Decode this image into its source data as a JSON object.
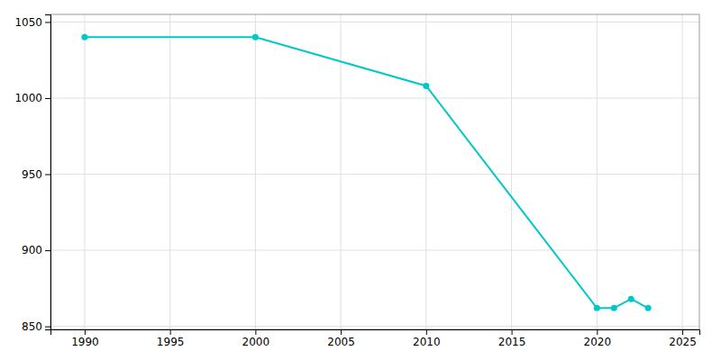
{
  "chart_data": {
    "type": "line",
    "x": [
      1990,
      2000,
      2010,
      2020,
      2021,
      2022,
      2023
    ],
    "values": [
      1040,
      1040,
      1008,
      862,
      862,
      868,
      862
    ],
    "color": "#00C8C8",
    "marker": "circle",
    "xlim": [
      1988,
      2026
    ],
    "ylim": [
      848,
      1055
    ],
    "xticks": [
      1990,
      1995,
      2000,
      2005,
      2010,
      2015,
      2020,
      2025
    ],
    "yticks": [
      850,
      900,
      950,
      1000,
      1050
    ],
    "grid": true
  }
}
